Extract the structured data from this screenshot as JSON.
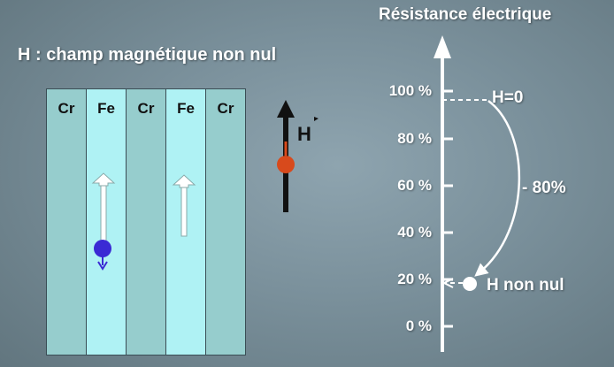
{
  "heading": "H : champ magnétique non nul",
  "layers": [
    {
      "label": "Cr",
      "kind": "Cr"
    },
    {
      "label": "Fe",
      "kind": "Fe"
    },
    {
      "label": "Cr",
      "kind": "Cr"
    },
    {
      "label": "Fe",
      "kind": "Fe"
    },
    {
      "label": "Cr",
      "kind": "Cr"
    }
  ],
  "colors": {
    "cr_layer": "#96cdcd",
    "fe_layer": "#aff2f4",
    "electron": "#3a2ad4",
    "field_dot": "#d84a1c"
  },
  "field_label": "H",
  "axis": {
    "title": "Résistance électrique",
    "ticks": [
      "100 %",
      "80 %",
      "60 %",
      "40 %",
      "20 %",
      "0 %"
    ]
  },
  "annotations": {
    "h_zero": "H=0",
    "drop": "- 80%",
    "h_nonzero": "H non nul"
  }
}
